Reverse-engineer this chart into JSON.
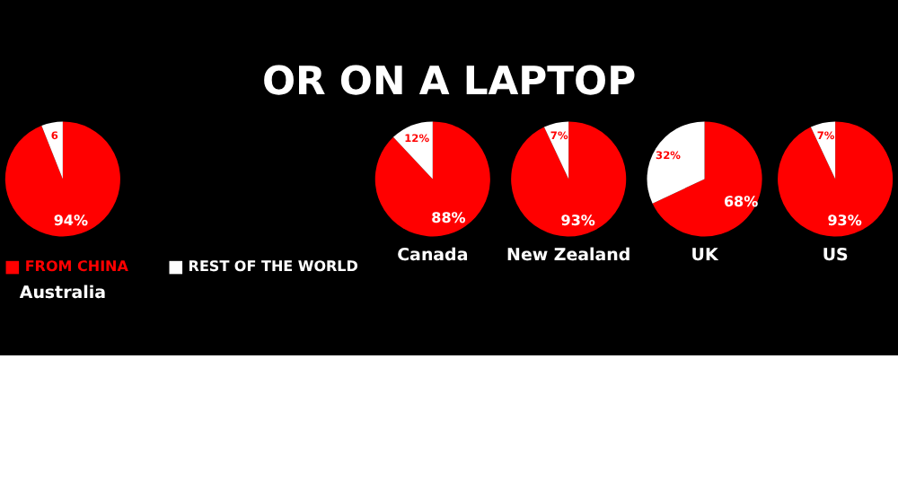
{
  "chart_data": [
    {
      "type": "other",
      "title": "OR ON A LAPTOP"
    },
    {
      "type": "pie",
      "title": "Australia",
      "categories": [
        "FROM CHINA",
        "REST OF THE WORLD"
      ],
      "values": [
        94,
        6
      ],
      "colors": [
        "#ff0000",
        "#ffffff"
      ],
      "value_labels": [
        "94%",
        "6"
      ],
      "legend": "bottom"
    },
    {
      "type": "pie",
      "title": "Canada",
      "categories": [
        null,
        null
      ],
      "values": [
        88,
        12
      ],
      "colors": [
        "#ff0000",
        "#ffffff"
      ],
      "value_labels": [
        "88%",
        "12%"
      ]
    },
    {
      "type": "pie",
      "title": "New Zealand",
      "categories": [
        null,
        null
      ],
      "values": [
        93,
        7
      ],
      "colors": [
        "#ff0000",
        "#ffffff"
      ],
      "value_labels": [
        "93%",
        "7%"
      ]
    },
    {
      "type": "pie",
      "title": "UK",
      "categories": [
        null,
        null
      ],
      "values": [
        68,
        32
      ],
      "colors": [
        "#ff0000",
        "#ffffff"
      ],
      "value_labels": [
        "68%",
        "32%"
      ]
    },
    {
      "type": "pie",
      "title": "US",
      "categories": [
        null,
        null
      ],
      "values": [
        93,
        7
      ],
      "colors": [
        "#ff0000",
        "#ffffff"
      ],
      "value_labels": [
        "93%",
        "7%"
      ]
    }
  ]
}
